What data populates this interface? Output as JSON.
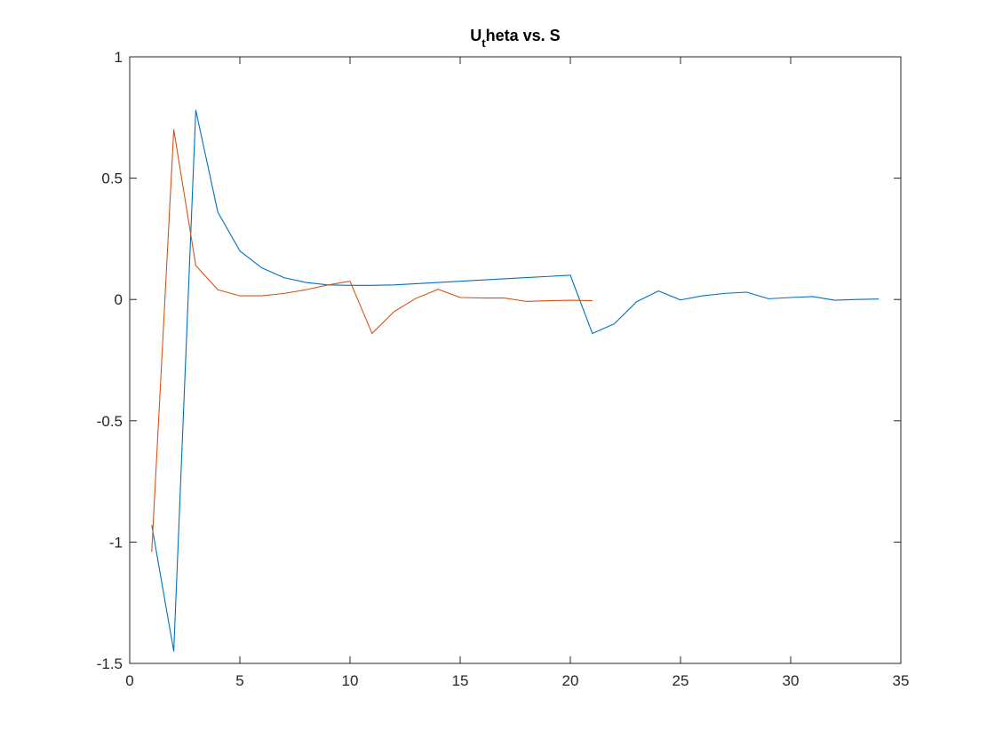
{
  "chart_data": {
    "type": "line",
    "title": {
      "main": "U",
      "subscript": "t",
      "rest": "heta vs. S"
    },
    "xlabel": "",
    "ylabel": "",
    "xlim": [
      0,
      35
    ],
    "ylim": [
      -1.5,
      1
    ],
    "x_ticks": [
      0,
      5,
      10,
      15,
      20,
      25,
      30,
      35
    ],
    "y_ticks": [
      -1.5,
      -1,
      -0.5,
      0,
      0.5,
      1
    ],
    "x_tick_labels": [
      "0",
      "5",
      "10",
      "15",
      "20",
      "25",
      "30",
      "35"
    ],
    "y_tick_labels": [
      "-1.5",
      "-1",
      "-0.5",
      "0",
      "0.5",
      "1"
    ],
    "grid": false,
    "box": true,
    "series": [
      {
        "color": "#0072BD",
        "x": [
          1,
          2,
          3,
          4,
          5,
          6,
          7,
          8,
          9,
          10,
          11,
          12,
          13,
          14,
          15,
          16,
          17,
          18,
          19,
          20,
          21,
          22,
          23,
          24,
          25,
          26,
          27,
          28,
          29,
          30,
          31,
          32,
          33,
          34
        ],
        "y": [
          -0.93,
          -1.45,
          0.78,
          0.36,
          0.2,
          0.13,
          0.09,
          0.07,
          0.06,
          0.058,
          0.058,
          0.06,
          0.065,
          0.07,
          0.075,
          0.08,
          0.085,
          0.09,
          0.095,
          0.1,
          -0.14,
          -0.1,
          -0.01,
          0.035,
          -0.002,
          0.015,
          0.025,
          0.03,
          0.003,
          0.008,
          0.012,
          -0.003,
          0.0,
          0.002
        ]
      },
      {
        "color": "#D95319",
        "x": [
          1,
          2,
          3,
          4,
          5,
          6,
          7,
          8,
          9,
          10,
          11,
          12,
          13,
          14,
          15,
          16,
          17,
          18,
          19,
          20,
          21
        ],
        "y": [
          -1.04,
          0.7,
          0.14,
          0.04,
          0.015,
          0.015,
          0.025,
          0.04,
          0.06,
          0.075,
          -0.14,
          -0.05,
          0.005,
          0.042,
          0.008,
          0.006,
          0.006,
          -0.008,
          -0.005,
          -0.003,
          -0.005
        ]
      }
    ]
  }
}
